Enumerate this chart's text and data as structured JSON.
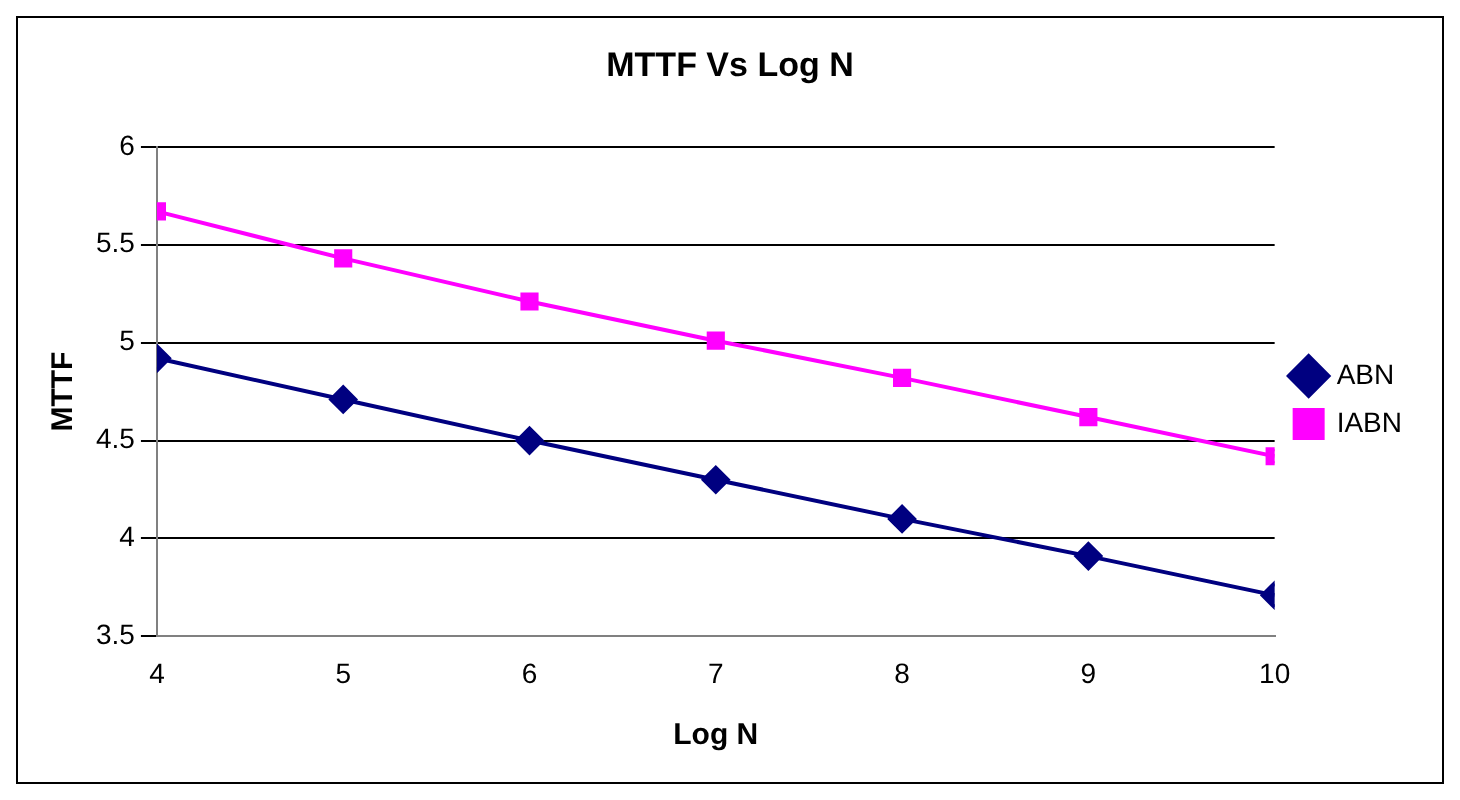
{
  "chart_data": {
    "type": "line",
    "title": "MTTF Vs Log N",
    "xlabel": "Log N",
    "ylabel": "MTTF",
    "x": [
      4,
      5,
      6,
      7,
      8,
      9,
      10
    ],
    "series": [
      {
        "name": "ABN",
        "color": "#000080",
        "marker": "diamond",
        "values": [
          4.92,
          4.71,
          4.5,
          4.3,
          4.1,
          3.91,
          3.71
        ]
      },
      {
        "name": "IABN",
        "color": "#ff00ff",
        "marker": "square",
        "values": [
          5.67,
          5.43,
          5.21,
          5.01,
          4.82,
          4.62,
          4.42
        ]
      }
    ],
    "xlim": [
      4,
      10
    ],
    "xticks": [
      4,
      5,
      6,
      7,
      8,
      9,
      10
    ],
    "ylim": [
      3.5,
      6
    ],
    "yticks": [
      3.5,
      4,
      4.5,
      5,
      5.5,
      6
    ],
    "grid": "y",
    "legend": "right",
    "line_style": "solid"
  }
}
